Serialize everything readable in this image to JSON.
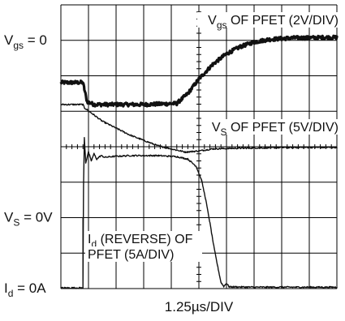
{
  "chart_data": {
    "type": "line",
    "grid": true,
    "x_divisions": 10,
    "y_divisions": 8,
    "x_scale": "1.25µs/DIV",
    "xlabel": "1.25µs/DIV",
    "reference_labels": [
      {
        "name": "vgs-zero-label",
        "main": "V",
        "sub": "gs",
        "rest": " = 0",
        "level_div": 7
      },
      {
        "name": "vs-zero-label",
        "main": "V",
        "sub": "S",
        "rest": " = 0V",
        "level_div": 2
      },
      {
        "name": "id-zero-label",
        "main": "I",
        "sub": "d",
        "rest": " = 0A",
        "level_div": 0
      }
    ],
    "trace_labels": [
      {
        "name": "vgs-trace-label",
        "lines": [
          {
            "main": "V",
            "sub": "gs",
            "rest": " OF PFET (2V/DIV)"
          }
        ]
      },
      {
        "name": "vs-trace-label",
        "lines": [
          {
            "main": "V",
            "sub": "S",
            "rest": " OF PFET (5V/DIV)"
          }
        ]
      },
      {
        "name": "id-trace-label",
        "lines": [
          {
            "main": "I",
            "sub": "d",
            "rest": " (REVERSE) OF"
          },
          {
            "main": "PFET (5A/DIV)",
            "sub": "",
            "rest": ""
          }
        ]
      }
    ],
    "series": [
      {
        "key": "vgs",
        "style": "heavy",
        "x": [
          0,
          0.8,
          0.85,
          0.95,
          1.2,
          3.0,
          4.2,
          4.6,
          5.0,
          5.5,
          6.0,
          6.5,
          7.0,
          7.5,
          8.0,
          8.5,
          9.0,
          9.5,
          10.0
        ],
        "y": [
          5.81,
          5.81,
          5.62,
          5.27,
          5.19,
          5.19,
          5.22,
          5.5,
          5.91,
          6.32,
          6.62,
          6.82,
          6.95,
          7.02,
          7.05,
          7.07,
          7.07,
          7.08,
          7.08
        ]
      },
      {
        "key": "vs",
        "style": "normal",
        "x": [
          0,
          0.8,
          0.85,
          1.5,
          2.5,
          3.5,
          4.5,
          5.0,
          5.5,
          6.5,
          7.5,
          8.5,
          9.5,
          10.0
        ],
        "y": [
          5.19,
          5.19,
          5.1,
          4.72,
          4.33,
          4.03,
          3.85,
          3.88,
          3.94,
          3.96,
          3.97,
          3.98,
          3.98,
          3.98
        ]
      },
      {
        "key": "id",
        "style": "normal",
        "x": [
          0,
          0.8,
          0.8,
          0.85,
          0.9,
          1.0,
          1.1,
          1.2,
          1.3,
          1.45,
          1.6,
          1.8,
          2.5,
          3.5,
          4.2,
          4.6,
          4.9,
          5.1,
          5.25,
          5.4,
          5.55,
          5.7,
          5.8,
          5.9,
          6.0,
          6.1,
          7.0,
          8.0,
          9.0,
          10.0
        ],
        "y": [
          0.02,
          0.02,
          2.0,
          4.25,
          3.55,
          3.85,
          3.6,
          3.8,
          3.65,
          3.75,
          3.7,
          3.72,
          3.75,
          3.75,
          3.72,
          3.65,
          3.45,
          3.05,
          2.5,
          1.85,
          1.15,
          0.55,
          0.18,
          0.06,
          0.15,
          0.05,
          0.04,
          0.04,
          0.04,
          0.04
        ]
      }
    ]
  }
}
